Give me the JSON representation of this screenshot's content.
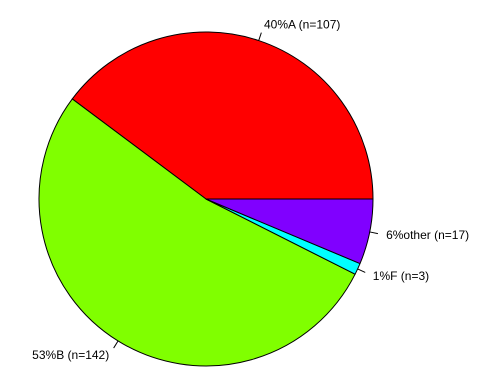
{
  "chart_data": {
    "type": "pie",
    "title": "",
    "start_angle_deg": 0,
    "direction": "counterclockwise",
    "legend": "none",
    "slices": [
      {
        "label": "40%A (n=107)",
        "category": "A",
        "value": 107,
        "percent": 40,
        "color": "#ff0000"
      },
      {
        "label": "53%B (n=142)",
        "category": "B",
        "value": 142,
        "percent": 53,
        "color": "#80ff00"
      },
      {
        "label": "1%F (n=3)",
        "category": "F",
        "value": 3,
        "percent": 1,
        "color": "#00ffff"
      },
      {
        "label": "6%other (n=17)",
        "category": "other",
        "value": 17,
        "percent": 6,
        "color": "#8000ff"
      }
    ]
  }
}
